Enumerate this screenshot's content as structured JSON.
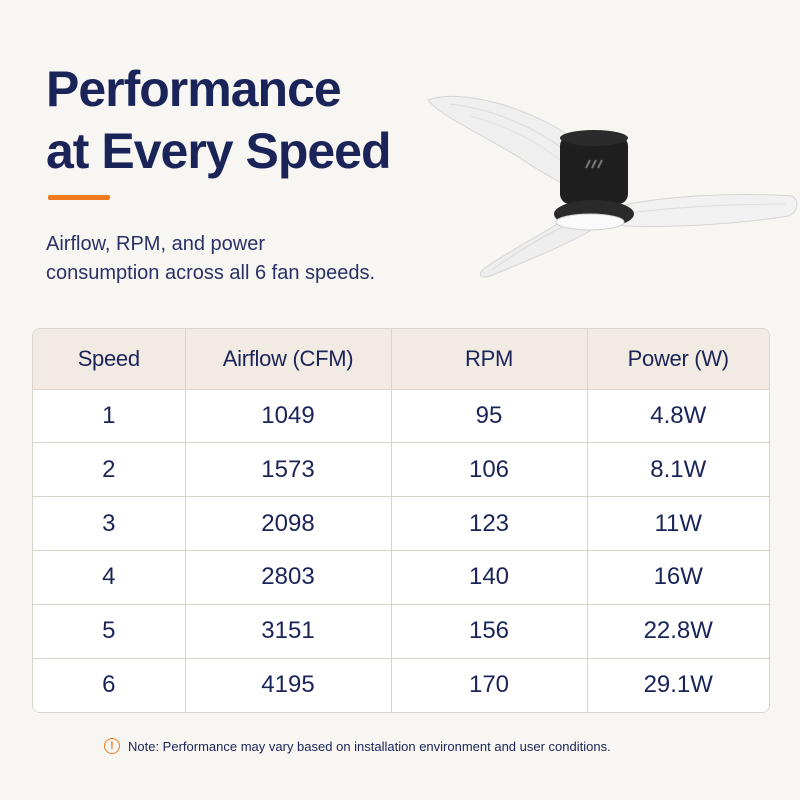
{
  "heading": {
    "line1": "Performance",
    "line2": "at Every Speed"
  },
  "subheading": {
    "line1": "Airflow, RPM, and power",
    "line2": "consumption across all 6 fan speeds."
  },
  "colors": {
    "navy": "#1b2458",
    "accent": "#f07a1e",
    "header_bg": "#f2ebe4",
    "page_bg": "#f7f6f2"
  },
  "product_image": {
    "icon": "ceiling-fan-image"
  },
  "table": {
    "headers": [
      "Speed",
      "Airflow (CFM)",
      "RPM",
      "Power (W)"
    ],
    "rows": [
      [
        "1",
        "1049",
        "95",
        "4.8W"
      ],
      [
        "2",
        "1573",
        "106",
        "8.1W"
      ],
      [
        "3",
        "2098",
        "123",
        "11W"
      ],
      [
        "4",
        "2803",
        "140",
        "16W"
      ],
      [
        "5",
        "3151",
        "156",
        "22.8W"
      ],
      [
        "6",
        "4195",
        "170",
        "29.1W"
      ]
    ]
  },
  "note": {
    "icon": "!",
    "text": "Note: Performance may vary based on installation environment and user conditions."
  }
}
